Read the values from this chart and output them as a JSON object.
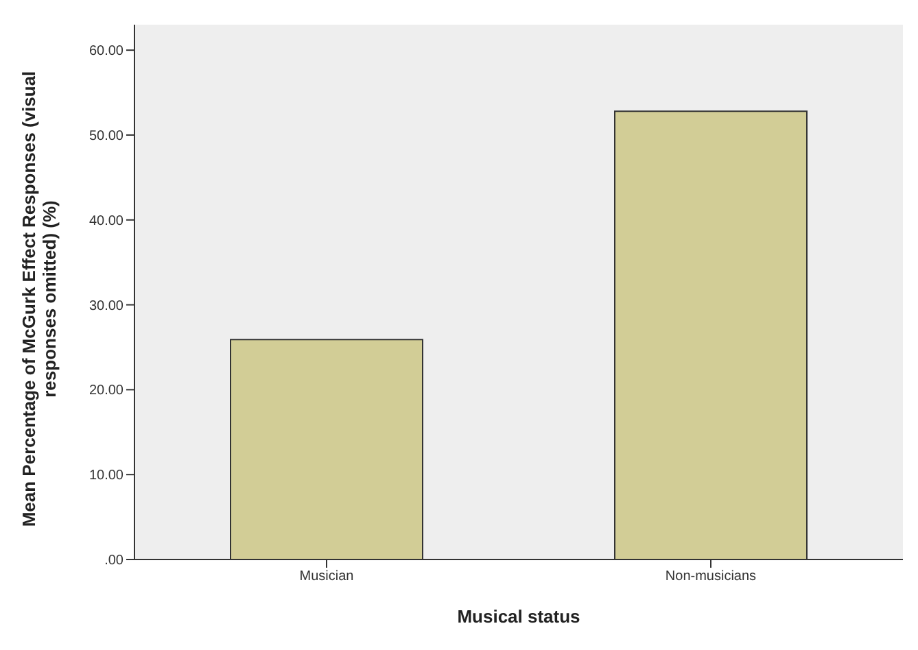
{
  "chart_data": {
    "type": "bar",
    "xlabel": "Musical status",
    "ylabel": "Mean Percentage of McGurk Effect Responses (visual responses omitted) (%)",
    "categories": [
      "Musician",
      "Non-musicians"
    ],
    "values": [
      25.9,
      52.8
    ],
    "color": "#d2cd96",
    "ylim": [
      0,
      63
    ],
    "yticks": [
      {
        "value": 0,
        "label": ".00"
      },
      {
        "value": 10,
        "label": "10.00"
      },
      {
        "value": 20,
        "label": "20.00"
      },
      {
        "value": 30,
        "label": "30.00"
      },
      {
        "value": 40,
        "label": "40.00"
      },
      {
        "value": 50,
        "label": "50.00"
      },
      {
        "value": 60,
        "label": "60.00"
      }
    ]
  }
}
